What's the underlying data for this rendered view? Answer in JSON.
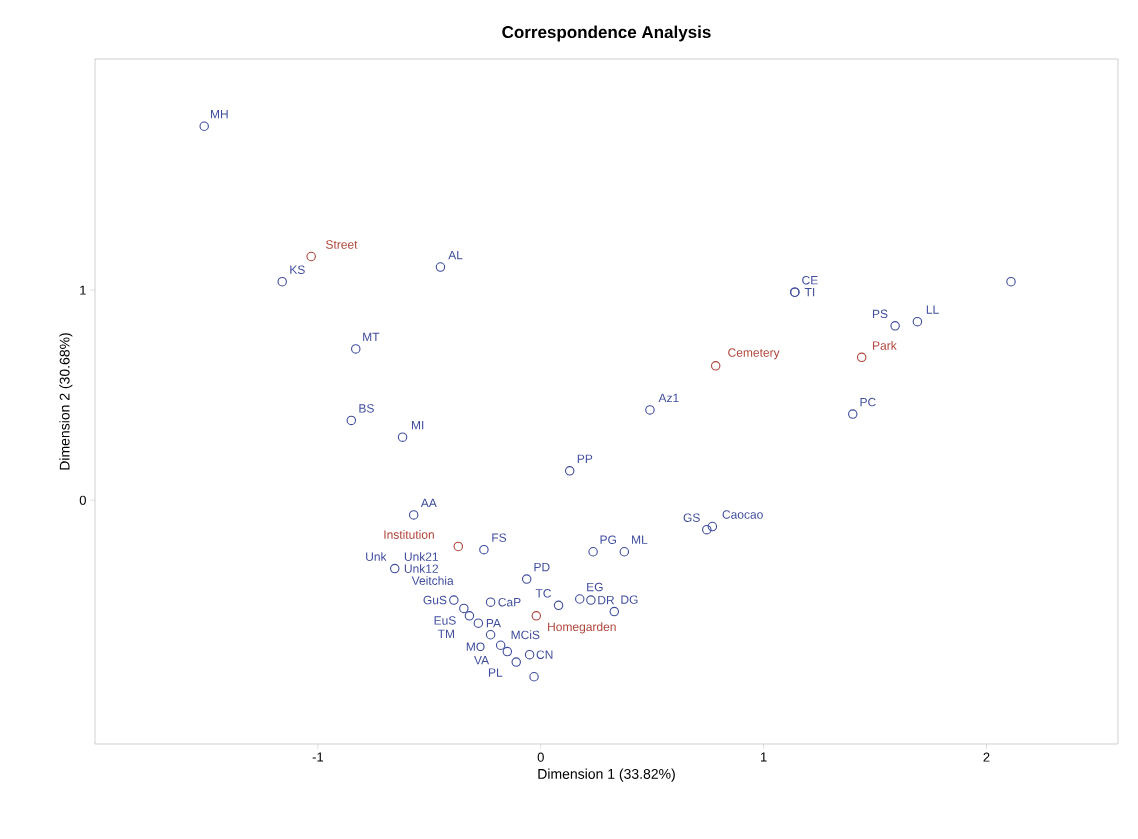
{
  "chart_data": {
    "type": "scatter",
    "title": "Correspondence Analysis",
    "xlabel": "Dimension 1 (33.82%)",
    "ylabel": "Dimension 2 (30.68%)",
    "xlim": [
      -2.0,
      2.59
    ],
    "ylim": [
      -1.16,
      2.1
    ],
    "xticks": [
      -1,
      0,
      1,
      2
    ],
    "yticks": [
      0,
      1
    ],
    "grid": false,
    "marker": "circle",
    "series": [
      {
        "color": "#3f4c9c",
        "x": [
          -1.51,
          -1.16,
          -0.45,
          -0.83,
          -0.85,
          -0.62,
          0.13,
          0.49,
          1.14,
          1.14,
          1.59,
          1.69,
          1.4,
          2.11,
          0.745,
          0.77,
          -0.57,
          -0.255,
          -0.655,
          0.235,
          0.375,
          -0.063,
          0.08,
          0.175,
          0.225,
          0.33,
          -0.225,
          -0.39,
          -0.345,
          -0.32,
          -0.28,
          -0.225,
          -0.18,
          -0.15,
          -0.05,
          -0.03,
          -0.11
        ],
        "values": [
          1.78,
          1.04,
          1.11,
          0.72,
          0.38,
          0.3,
          0.14,
          0.43,
          0.99,
          0.99,
          0.83,
          0.85,
          0.41,
          1.04,
          -0.14,
          -0.125,
          -0.07,
          -0.235,
          -0.325,
          -0.245,
          -0.245,
          -0.375,
          -0.5,
          -0.47,
          -0.475,
          -0.53,
          -0.485,
          -0.475,
          -0.515,
          -0.55,
          -0.585,
          -0.64,
          -0.69,
          -0.72,
          -0.735,
          -0.84,
          -0.77
        ]
      },
      {
        "color": "#b0443a",
        "x": [
          -1.03,
          0.785,
          1.44,
          -0.37,
          -0.02
        ],
        "values": [
          1.16,
          0.64,
          0.68,
          -0.22,
          -0.55
        ]
      }
    ],
    "annotations": [
      {
        "text": "MH",
        "x": -1.51,
        "y": 1.78
      },
      {
        "text": "KS",
        "x": -1.16,
        "y": 1.04
      },
      {
        "text": "AL",
        "x": -0.45,
        "y": 1.11
      },
      {
        "text": "MT",
        "x": -0.83,
        "y": 0.72
      },
      {
        "text": "BS",
        "x": -0.85,
        "y": 0.38
      },
      {
        "text": "MI",
        "x": -0.62,
        "y": 0.3
      },
      {
        "text": "PP",
        "x": 0.13,
        "y": 0.14
      },
      {
        "text": "Az1",
        "x": 0.49,
        "y": 0.43
      },
      {
        "text": "CE",
        "x": 1.14,
        "y": 0.99
      },
      {
        "text": "TI",
        "x": 1.14,
        "y": 0.99
      },
      {
        "text": "PS",
        "x": 1.59,
        "y": 0.83
      },
      {
        "text": "LL",
        "x": 1.69,
        "y": 0.85
      },
      {
        "text": "PC",
        "x": 1.4,
        "y": 0.41
      },
      {
        "text": "GS",
        "x": 0.745,
        "y": -0.14
      },
      {
        "text": "Caocao",
        "x": 0.77,
        "y": -0.125
      },
      {
        "text": "AA",
        "x": -0.57,
        "y": -0.07
      },
      {
        "text": "FS",
        "x": -0.255,
        "y": -0.235
      },
      {
        "text": "Unk21",
        "x": -0.655,
        "y": -0.325
      },
      {
        "text": "Unk12",
        "x": -0.655,
        "y": -0.325
      },
      {
        "text": "Unk",
        "x": -0.655,
        "y": -0.325
      },
      {
        "text": "Veitchia",
        "x": -0.655,
        "y": -0.325
      },
      {
        "text": "PG",
        "x": 0.235,
        "y": -0.245
      },
      {
        "text": "ML",
        "x": 0.375,
        "y": -0.245
      },
      {
        "text": "PD",
        "x": -0.063,
        "y": -0.375
      },
      {
        "text": "TC",
        "x": 0.08,
        "y": -0.5
      },
      {
        "text": "EG",
        "x": 0.175,
        "y": -0.47
      },
      {
        "text": "DR",
        "x": 0.225,
        "y": -0.475
      },
      {
        "text": "DG",
        "x": 0.33,
        "y": -0.53
      },
      {
        "text": "CaP",
        "x": -0.225,
        "y": -0.485
      },
      {
        "text": "GuS",
        "x": -0.39,
        "y": -0.475
      },
      {
        "text": "EuS",
        "x": -0.345,
        "y": -0.515
      },
      {
        "text": "TM",
        "x": -0.32,
        "y": -0.55
      },
      {
        "text": "PA",
        "x": -0.28,
        "y": -0.585
      },
      {
        "text": "MO",
        "x": -0.225,
        "y": -0.64
      },
      {
        "text": "MCiS",
        "x": -0.225,
        "y": -0.64
      },
      {
        "text": "VA",
        "x": -0.18,
        "y": -0.69
      },
      {
        "text": "PL",
        "x": -0.15,
        "y": -0.72
      },
      {
        "text": "CN",
        "x": -0.05,
        "y": -0.735
      },
      {
        "text": "Street",
        "x": -1.03,
        "y": 1.16
      },
      {
        "text": "Cemetery",
        "x": 0.785,
        "y": 0.64
      },
      {
        "text": "Park",
        "x": 1.44,
        "y": 0.68
      },
      {
        "text": "Institution",
        "x": -0.37,
        "y": -0.22
      },
      {
        "text": "Homegarden",
        "x": -0.02,
        "y": -0.55
      }
    ]
  }
}
